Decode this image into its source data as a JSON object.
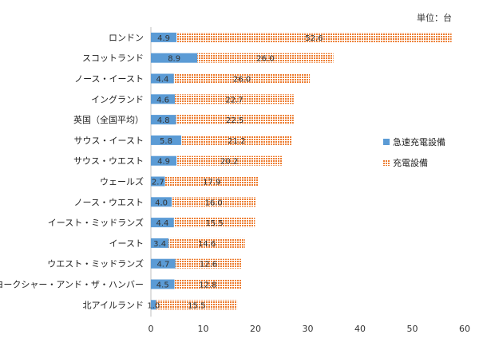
{
  "unit_label": "単位：台",
  "legend": {
    "rapid": "急速充電設備",
    "total": "充電設備"
  },
  "colors": {
    "rapid": "#5B9BD5",
    "total": "#ED7D31",
    "axis": "#bfbfbf"
  },
  "chart_data": {
    "type": "bar",
    "orientation": "horizontal",
    "stacked": true,
    "unit": "台",
    "categories": [
      "ロンドン",
      "スコットランド",
      "ノース・イースト",
      "イングランド",
      "英国（全国平均）",
      "サウス・イースト",
      "サウス・ウエスト",
      "ウェールズ",
      "ノース・ウエスト",
      "イースト・ミッドランズ",
      "イースト",
      "ウエスト・ミッドランズ",
      "ヨークシャー・アンド・ザ・ハンバー",
      "北アイルランド"
    ],
    "series": [
      {
        "name": "急速充電設備",
        "values": [
          4.9,
          8.9,
          4.4,
          4.6,
          4.8,
          5.8,
          4.9,
          2.7,
          4.0,
          4.4,
          3.4,
          4.7,
          4.5,
          1.0
        ]
      },
      {
        "name": "充電設備",
        "values": [
          52.6,
          26.0,
          26.0,
          22.7,
          22.5,
          21.2,
          20.2,
          17.9,
          16.0,
          15.5,
          14.6,
          12.6,
          12.8,
          15.5
        ]
      }
    ],
    "xlim": [
      0,
      60
    ],
    "xticks": [
      0,
      10,
      20,
      30,
      40,
      50,
      60
    ],
    "grid": false,
    "legend_position": "right"
  }
}
